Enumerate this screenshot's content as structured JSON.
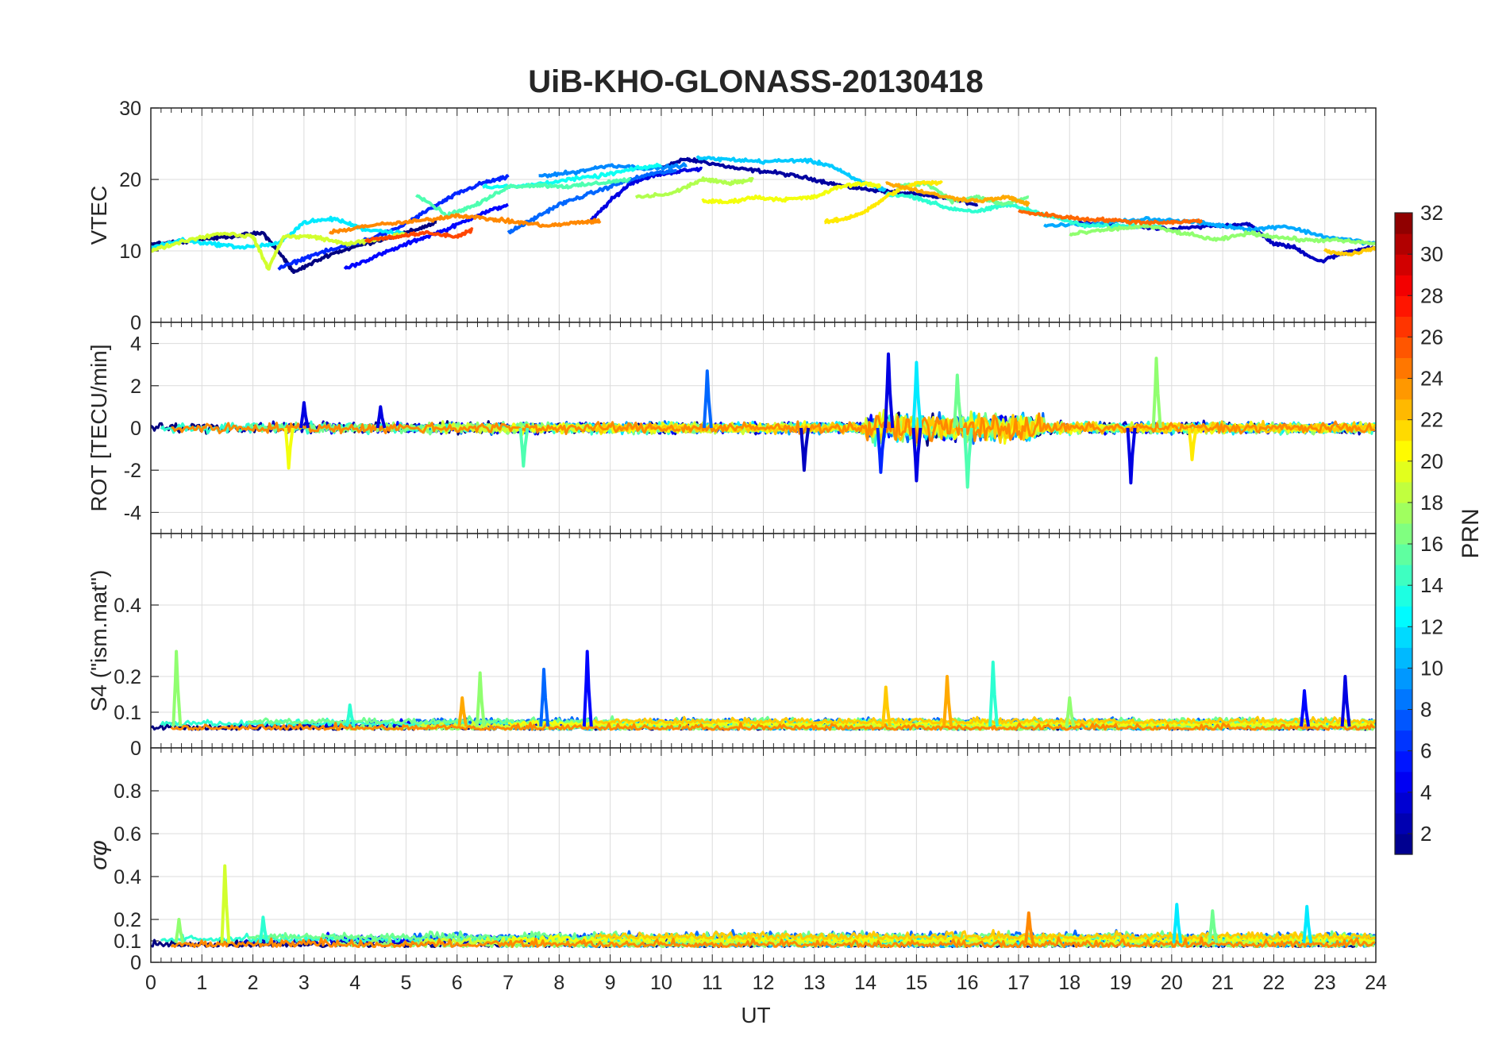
{
  "title": "UiB-KHO-GLONASS-20130418",
  "xlabel": "UT",
  "x_ticks": [
    "0",
    "1",
    "2",
    "3",
    "4",
    "5",
    "6",
    "7",
    "8",
    "9",
    "10",
    "11",
    "12",
    "13",
    "14",
    "15",
    "16",
    "17",
    "18",
    "19",
    "20",
    "21",
    "22",
    "23",
    "24"
  ],
  "colorbar": {
    "label": "PRN",
    "colormap": "jet",
    "range": [
      1,
      32
    ],
    "ticks": [
      "2",
      "4",
      "6",
      "8",
      "10",
      "12",
      "14",
      "16",
      "18",
      "20",
      "22",
      "24",
      "26",
      "28",
      "30",
      "32"
    ]
  },
  "chart_data": [
    {
      "type": "line",
      "panel": "vtec",
      "ylabel": "VTEC",
      "ylim": [
        0,
        30
      ],
      "yticks": [
        "0",
        "10",
        "20",
        "30"
      ],
      "xlim": [
        0,
        24
      ],
      "grid": true,
      "series": [
        {
          "prn": 2,
          "x": [
            10.0,
            10.4,
            10.8,
            11.5,
            12.2,
            13.0,
            13.6,
            14.2,
            14.8,
            15.5,
            16.2
          ],
          "y": [
            21.5,
            22.8,
            22.5,
            21.5,
            21.0,
            20.0,
            19.0,
            18.5,
            18.0,
            17.5,
            16.5
          ]
        },
        {
          "prn": 1,
          "x": [
            0.0,
            0.8,
            1.5,
            2.2,
            2.6,
            2.8,
            3.5,
            4.2,
            5.0,
            5.6
          ],
          "y": [
            11.0,
            11.5,
            12.0,
            12.5,
            9.0,
            7.0,
            9.5,
            11.0,
            12.5,
            14.0
          ]
        },
        {
          "prn": 4,
          "x": [
            8.6,
            9.0,
            9.4,
            9.8,
            10.2,
            10.8
          ],
          "y": [
            14.0,
            17.0,
            19.5,
            20.5,
            21.0,
            21.5
          ]
        },
        {
          "prn": 5,
          "x": [
            3.8,
            4.5,
            5.2,
            5.8,
            6.4,
            7.0
          ],
          "y": [
            7.5,
            9.5,
            11.5,
            13.0,
            15.0,
            16.5
          ]
        },
        {
          "prn": 6,
          "x": [
            2.5,
            3.2,
            4.0,
            4.8,
            5.5,
            6.0,
            6.5,
            7.0
          ],
          "y": [
            7.5,
            9.5,
            11.0,
            13.0,
            16.0,
            18.0,
            19.5,
            20.3
          ]
        },
        {
          "prn": 3,
          "x": [
            18.0,
            19.0,
            20.0,
            20.8,
            21.5,
            22.0,
            22.4,
            22.9,
            23.5,
            24.0
          ],
          "y": [
            14.0,
            13.5,
            13.0,
            13.5,
            13.8,
            11.0,
            10.5,
            8.5,
            10.0,
            10.5
          ]
        },
        {
          "prn": 8,
          "x": [
            7.0,
            7.5,
            8.0,
            8.6,
            9.2,
            9.8,
            10.3
          ],
          "y": [
            12.5,
            14.5,
            16.5,
            18.0,
            19.5,
            20.8,
            21.2
          ]
        },
        {
          "prn": 9,
          "x": [
            7.6,
            8.3,
            9.0,
            9.8,
            10.5
          ],
          "y": [
            20.5,
            21.0,
            22.0,
            21.5,
            22.0
          ]
        },
        {
          "prn": 10,
          "x": [
            17.5,
            18.5,
            19.5,
            20.5,
            21.0,
            21.6,
            22.2,
            23.0,
            24.0
          ],
          "y": [
            13.5,
            13.8,
            14.5,
            14.0,
            13.5,
            13.0,
            13.5,
            12.0,
            11.0
          ]
        },
        {
          "prn": 11,
          "x": [
            10.7,
            11.3,
            12.0,
            12.8,
            13.3,
            13.8,
            14.4
          ],
          "y": [
            23.0,
            22.8,
            22.5,
            22.7,
            22.0,
            20.0,
            18.5
          ]
        },
        {
          "prn": 12,
          "x": [
            0.0,
            0.6,
            1.2,
            1.8,
            2.5,
            3.0,
            3.6,
            4.2,
            5.0
          ],
          "y": [
            10.5,
            11.5,
            11.0,
            10.5,
            11.0,
            14.0,
            14.5,
            13.0,
            12.5
          ]
        },
        {
          "prn": 13,
          "x": [
            6.5,
            7.2,
            8.0,
            8.8,
            9.5,
            10.0
          ],
          "y": [
            19.0,
            19.0,
            19.8,
            20.5,
            21.5,
            22.0
          ]
        },
        {
          "prn": 14,
          "x": [
            14.4,
            15.0,
            15.6,
            16.2,
            16.8,
            17.3,
            17.8,
            18.3,
            19.0,
            19.8
          ],
          "y": [
            18.0,
            17.5,
            16.0,
            15.5,
            16.5,
            15.5,
            14.5,
            13.5,
            13.5,
            13.5
          ]
        },
        {
          "prn": 15,
          "x": [
            5.2,
            5.8,
            6.4,
            7.0,
            7.6,
            8.2,
            8.8,
            9.4
          ],
          "y": [
            18.0,
            15.0,
            16.5,
            19.0,
            19.2,
            19.0,
            19.5,
            20.0
          ]
        },
        {
          "prn": 16,
          "x": [
            14.6,
            15.2,
            15.7,
            16.2,
            16.7,
            17.2
          ],
          "y": [
            19.0,
            19.5,
            17.0,
            17.5,
            16.5,
            17.5
          ]
        },
        {
          "prn": 17,
          "x": [
            18.0,
            18.8,
            19.5,
            20.2,
            20.9,
            21.5,
            22.0,
            22.6,
            23.2,
            24.0
          ],
          "y": [
            12.3,
            13.0,
            13.5,
            12.5,
            11.5,
            12.5,
            12.0,
            11.5,
            11.5,
            11.0
          ]
        },
        {
          "prn": 18,
          "x": [
            9.5,
            10.2,
            10.8,
            11.3,
            11.8
          ],
          "y": [
            17.5,
            18.0,
            20.0,
            19.5,
            20.0
          ]
        },
        {
          "prn": 19,
          "x": [
            0.0,
            0.7,
            1.4,
            2.0,
            2.3,
            2.6,
            3.2,
            3.8,
            4.4,
            5.0
          ],
          "y": [
            10.0,
            11.5,
            12.5,
            12.0,
            7.5,
            12.0,
            12.0,
            11.0,
            11.5,
            12.5
          ]
        },
        {
          "prn": 20,
          "x": [
            10.8,
            11.3,
            11.8,
            12.4,
            13.0,
            13.5,
            14.0,
            14.3
          ],
          "y": [
            17.0,
            16.8,
            17.5,
            17.2,
            17.5,
            19.0,
            19.5,
            19.0
          ]
        },
        {
          "prn": 21,
          "x": [
            13.2,
            13.6,
            14.0,
            14.5,
            15.0,
            15.5
          ],
          "y": [
            14.0,
            14.5,
            15.5,
            18.0,
            19.5,
            19.5
          ]
        },
        {
          "prn": 22,
          "x": [
            23.0,
            23.5,
            24.0
          ],
          "y": [
            10.0,
            9.5,
            10.5
          ]
        },
        {
          "prn": 23,
          "x": [
            14.4,
            15.0,
            15.6,
            16.2,
            16.8,
            17.2
          ],
          "y": [
            19.5,
            18.5,
            17.5,
            17.0,
            17.5,
            16.5
          ]
        },
        {
          "prn": 24,
          "x": [
            3.5,
            4.2,
            5.0,
            5.6,
            6.0,
            6.6,
            7.2,
            7.8,
            8.4,
            8.8
          ],
          "y": [
            12.5,
            13.5,
            14.0,
            14.5,
            15.0,
            14.5,
            14.0,
            13.5,
            14.0,
            14.2
          ]
        },
        {
          "prn": 25,
          "x": [
            17.0,
            17.6,
            18.2,
            18.8,
            19.4,
            20.0,
            20.6
          ],
          "y": [
            15.5,
            15.0,
            14.5,
            14.3,
            14.0,
            14.0,
            14.2
          ]
        },
        {
          "prn": 26,
          "x": [
            4.2,
            4.8,
            5.4,
            6.0,
            6.3
          ],
          "y": [
            11.5,
            12.0,
            12.5,
            12.0,
            13.0
          ]
        }
      ]
    },
    {
      "type": "line",
      "panel": "rot",
      "ylabel": "ROT [TECU/min]",
      "ylim": [
        -5,
        5
      ],
      "yticks": [
        "-4",
        "-2",
        "0",
        "2",
        "4"
      ],
      "xlim": [
        0,
        24
      ],
      "grid": true,
      "spikes": [
        {
          "prn": 8,
          "x": 10.9,
          "y": 2.7
        },
        {
          "prn": 4,
          "x": 14.45,
          "y": 3.5
        },
        {
          "prn": 12,
          "x": 15.0,
          "y": 3.1
        },
        {
          "prn": 16,
          "x": 15.8,
          "y": 2.5
        },
        {
          "prn": 17,
          "x": 19.7,
          "y": 3.3
        },
        {
          "prn": 4,
          "x": 19.2,
          "y": -2.6
        },
        {
          "prn": 4,
          "x": 15.0,
          "y": -2.5
        },
        {
          "prn": 15,
          "x": 16.0,
          "y": -2.8
        },
        {
          "prn": 3,
          "x": 12.8,
          "y": -2.0
        },
        {
          "prn": 20,
          "x": 2.7,
          "y": -1.9
        },
        {
          "prn": 15,
          "x": 7.3,
          "y": -1.8
        },
        {
          "prn": 4,
          "x": 3.0,
          "y": 1.2
        },
        {
          "prn": 4,
          "x": 4.5,
          "y": 1.0
        },
        {
          "prn": 6,
          "x": 14.3,
          "y": -2.1
        },
        {
          "prn": 21,
          "x": 20.4,
          "y": -1.5
        }
      ],
      "active_window": {
        "x": [
          14.0,
          17.5
        ],
        "amplitude": 1.8
      }
    },
    {
      "type": "line",
      "panel": "s4",
      "ylabel": "S4 (\"ism.mat\")",
      "ylim": [
        0,
        0.6
      ],
      "yticks": [
        "0",
        "0.1",
        "0.2",
        "0.4"
      ],
      "xlim": [
        0,
        24
      ],
      "grid": true,
      "spikes": [
        {
          "prn": 17,
          "x": 0.5,
          "y": 0.27
        },
        {
          "prn": 8,
          "x": 7.7,
          "y": 0.22
        },
        {
          "prn": 5,
          "x": 8.55,
          "y": 0.27
        },
        {
          "prn": 17,
          "x": 6.45,
          "y": 0.21
        },
        {
          "prn": 22,
          "x": 14.4,
          "y": 0.17
        },
        {
          "prn": 23,
          "x": 15.6,
          "y": 0.2
        },
        {
          "prn": 14,
          "x": 16.5,
          "y": 0.24
        },
        {
          "prn": 4,
          "x": 23.4,
          "y": 0.2
        },
        {
          "prn": 5,
          "x": 22.6,
          "y": 0.16
        },
        {
          "prn": 14,
          "x": 3.9,
          "y": 0.12
        },
        {
          "prn": 17,
          "x": 18.0,
          "y": 0.14
        },
        {
          "prn": 23,
          "x": 6.1,
          "y": 0.14
        }
      ],
      "baseline": 0.06
    },
    {
      "type": "line",
      "panel": "sigma_phi",
      "ylabel": "σφ",
      "ylim": [
        0,
        1
      ],
      "yticks": [
        "0",
        "0.1",
        "0.2",
        "0.4",
        "0.6",
        "0.8"
      ],
      "xlim": [
        0,
        24
      ],
      "grid": true,
      "spikes": [
        {
          "prn": 19,
          "x": 1.45,
          "y": 0.45
        },
        {
          "prn": 17,
          "x": 0.55,
          "y": 0.2
        },
        {
          "prn": 12,
          "x": 20.1,
          "y": 0.27
        },
        {
          "prn": 16,
          "x": 20.8,
          "y": 0.24
        },
        {
          "prn": 12,
          "x": 22.65,
          "y": 0.26
        },
        {
          "prn": 24,
          "x": 17.2,
          "y": 0.23
        },
        {
          "prn": 14,
          "x": 2.2,
          "y": 0.21
        }
      ],
      "baseline": 0.09
    }
  ]
}
